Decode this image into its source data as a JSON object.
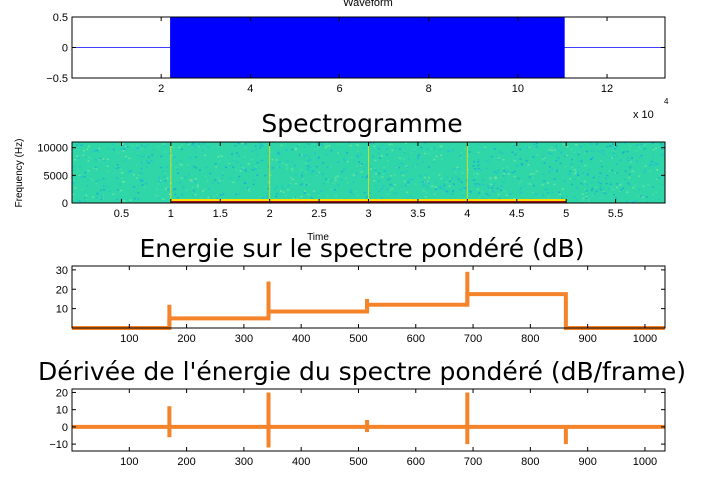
{
  "chart_data": [
    {
      "type": "area",
      "title": "Waveform",
      "xlabel": "",
      "ylabel": "",
      "x_multiplier": "x 10",
      "x_multiplier_exponent": "4",
      "xlim": [
        0,
        133000
      ],
      "ylim": [
        -0.5,
        0.5
      ],
      "xticks": [
        20000,
        40000,
        60000,
        80000,
        100000,
        120000
      ],
      "xtick_labels": [
        "2",
        "4",
        "6",
        "8",
        "10",
        "12"
      ],
      "yticks": [
        0.5,
        0,
        -0.5
      ],
      "ytick_labels": [
        "0.5",
        "0",
        "−0.5"
      ],
      "signal_start": 22000,
      "signal_end": 110500,
      "amplitude": 0.5,
      "color": "#0000ff",
      "grid": false
    },
    {
      "type": "heatmap",
      "title": "Spectrogramme",
      "xlabel": "Time",
      "ylabel": "Frequency (Hz)",
      "xlim": [
        0,
        6
      ],
      "ylim": [
        0,
        11025
      ],
      "xticks": [
        0.5,
        1,
        1.5,
        2,
        2.5,
        3,
        3.5,
        4,
        4.5,
        5,
        5.5
      ],
      "xtick_labels": [
        "0.5",
        "1",
        "1.5",
        "2",
        "2.5",
        "3",
        "3.5",
        "4",
        "4.5",
        "5",
        "5.5"
      ],
      "yticks": [
        0,
        5000,
        10000
      ],
      "ytick_labels": [
        "0",
        "5000",
        "10000"
      ],
      "onsets": [
        1,
        2,
        3,
        4
      ],
      "tone_segments": [
        [
          1,
          2
        ],
        [
          2,
          3
        ],
        [
          3,
          4
        ],
        [
          4,
          5
        ]
      ],
      "background_color": "#2fd6a8",
      "tone_color": "#ffdd00",
      "grid": false
    },
    {
      "type": "line",
      "title": "Energie sur le spectre pondéré (dB)",
      "xlabel": "",
      "ylabel": "",
      "xlim": [
        0,
        1035
      ],
      "ylim": [
        0,
        32
      ],
      "xticks": [
        100,
        200,
        300,
        400,
        500,
        600,
        700,
        800,
        900,
        1000
      ],
      "xtick_labels": [
        "100",
        "200",
        "300",
        "400",
        "500",
        "600",
        "700",
        "800",
        "900",
        "1000"
      ],
      "yticks": [
        10,
        20,
        30
      ],
      "ytick_labels": [
        "10",
        "20",
        "30"
      ],
      "segments": [
        {
          "x0": 0,
          "x1": 170,
          "y": 0
        },
        {
          "x0": 170,
          "x1": 343,
          "y": 5
        },
        {
          "x0": 343,
          "x1": 515,
          "y": 8.5
        },
        {
          "x0": 515,
          "x1": 690,
          "y": 12
        },
        {
          "x0": 690,
          "x1": 862,
          "y": 17.5
        },
        {
          "x0": 862,
          "x1": 1035,
          "y": 0
        }
      ],
      "spikes": [
        {
          "x": 170,
          "y": 12
        },
        {
          "x": 343,
          "y": 24
        },
        {
          "x": 515,
          "y": 15
        },
        {
          "x": 690,
          "y": 29
        }
      ],
      "color": "#f5832a",
      "grid": false
    },
    {
      "type": "line",
      "title": "Dérivée de l'énergie du spectre pondéré (dB/frame)",
      "xlabel": "",
      "ylabel": "",
      "xlim": [
        0,
        1035
      ],
      "ylim": [
        -14,
        22
      ],
      "xticks": [
        100,
        200,
        300,
        400,
        500,
        600,
        700,
        800,
        900,
        1000
      ],
      "xtick_labels": [
        "100",
        "200",
        "300",
        "400",
        "500",
        "600",
        "700",
        "800",
        "900",
        "1000"
      ],
      "yticks": [
        20,
        10,
        0,
        -10
      ],
      "ytick_labels": [
        "20",
        "10",
        "0",
        "−10"
      ],
      "baseline": 0,
      "impulses": [
        {
          "x": 170,
          "y0": -6,
          "y1": 12
        },
        {
          "x": 343,
          "y0": -12,
          "y1": 20
        },
        {
          "x": 515,
          "y0": -3,
          "y1": 4
        },
        {
          "x": 690,
          "y0": -10,
          "y1": 20
        },
        {
          "x": 862,
          "y0": -10,
          "y1": 0
        }
      ],
      "color": "#f5832a",
      "grid": false
    }
  ]
}
